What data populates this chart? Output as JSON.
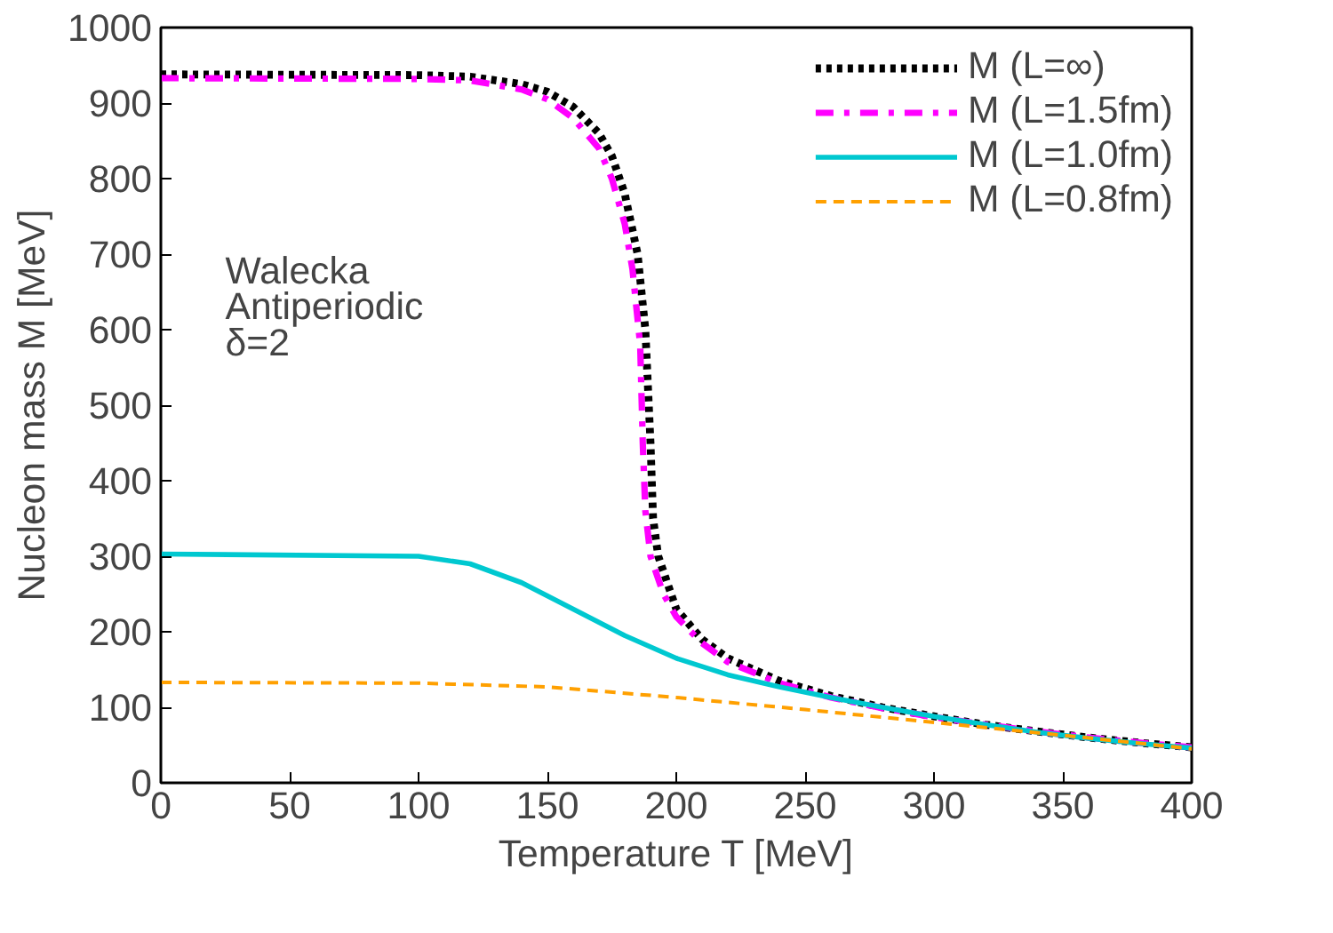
{
  "chart_data": {
    "type": "line",
    "xlabel": "Temperature T [MeV]",
    "ylabel": "Nucleon mass M [MeV]",
    "xlim": [
      0,
      400
    ],
    "ylim": [
      0,
      1000
    ],
    "xticks": [
      0,
      50,
      100,
      150,
      200,
      250,
      300,
      350,
      400
    ],
    "yticks": [
      0,
      100,
      200,
      300,
      400,
      500,
      600,
      700,
      800,
      900,
      1000
    ],
    "grid": false,
    "legend": "top right",
    "annotations": [
      "Walecka",
      "Antiperiodic",
      "δ=2"
    ],
    "series": [
      {
        "name": "M (L=∞)",
        "color": "#000000",
        "line_style": "dotted",
        "x": [
          0,
          100,
          120,
          140,
          150,
          160,
          170,
          175,
          180,
          185,
          188,
          190,
          191,
          193,
          197,
          200,
          210,
          220,
          240,
          260,
          280,
          300,
          320,
          340,
          360,
          380,
          400
        ],
        "values": [
          938,
          937,
          935,
          925,
          915,
          895,
          860,
          830,
          780,
          700,
          600,
          450,
          350,
          300,
          260,
          230,
          190,
          165,
          135,
          115,
          100,
          88,
          77,
          68,
          60,
          53,
          47
        ]
      },
      {
        "name": "M (L=1.5fm)",
        "color": "#ff00ff",
        "line_style": "dashdot",
        "x": [
          0,
          100,
          120,
          140,
          150,
          160,
          170,
          175,
          180,
          183,
          186,
          187,
          188,
          190,
          195,
          200,
          210,
          220,
          240,
          260,
          280,
          300,
          320,
          340,
          360,
          380,
          400
        ],
        "values": [
          933,
          932,
          930,
          918,
          905,
          880,
          840,
          800,
          740,
          680,
          580,
          450,
          360,
          300,
          250,
          220,
          185,
          160,
          132,
          113,
          99,
          87,
          77,
          68,
          60,
          53,
          47
        ]
      },
      {
        "name": "M (L=1.0fm)",
        "color": "#00c8d0",
        "line_style": "solid",
        "x": [
          0,
          100,
          120,
          140,
          160,
          180,
          200,
          220,
          240,
          260,
          280,
          300,
          320,
          340,
          360,
          380,
          400
        ],
        "values": [
          303,
          300,
          290,
          265,
          230,
          195,
          165,
          143,
          127,
          113,
          100,
          88,
          77,
          67,
          59,
          52,
          46
        ]
      },
      {
        "name": "M (L=0.8fm)",
        "color": "#ffa000",
        "line_style": "dashed",
        "x": [
          0,
          100,
          150,
          200,
          250,
          300,
          350,
          400
        ],
        "values": [
          133,
          132,
          127,
          113,
          97,
          80,
          63,
          45
        ]
      }
    ]
  }
}
